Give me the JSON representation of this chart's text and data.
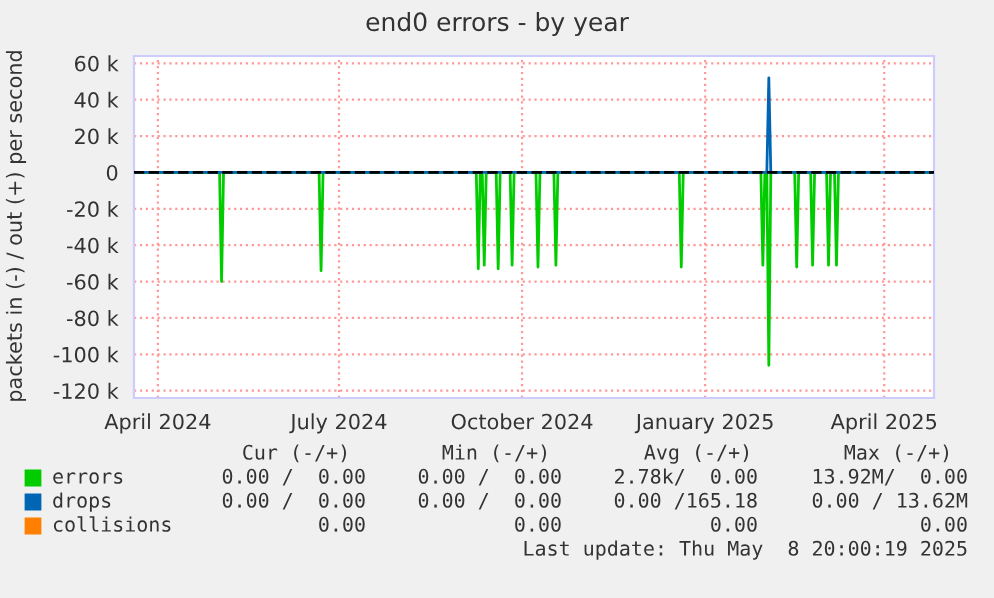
{
  "chart_data": {
    "type": "line",
    "title": "end0 errors - by year",
    "ylabel": "packets in (-) / out (+) per second",
    "xlim": [
      "2024-03-20",
      "2025-04-26"
    ],
    "ylim": [
      -124000,
      64000
    ],
    "xticks": [
      {
        "value": "2024-04-01",
        "label": "April 2024"
      },
      {
        "value": "2024-07-01",
        "label": "July 2024"
      },
      {
        "value": "2024-10-01",
        "label": "October 2024"
      },
      {
        "value": "2025-01-01",
        "label": "January 2025"
      },
      {
        "value": "2025-04-01",
        "label": "April 2025"
      }
    ],
    "yticks": [
      {
        "value": -120000,
        "label": "-120 k"
      },
      {
        "value": -100000,
        "label": "-100 k"
      },
      {
        "value": -80000,
        "label": "-80 k"
      },
      {
        "value": -60000,
        "label": "-60 k"
      },
      {
        "value": -40000,
        "label": "-40 k"
      },
      {
        "value": -20000,
        "label": "-20 k"
      },
      0,
      {
        "value": 20000,
        "label": "20 k"
      },
      {
        "value": 40000,
        "label": "40 k"
      },
      {
        "value": 60000,
        "label": "60 k"
      }
    ],
    "grid": true,
    "legend": "bottom",
    "ref_lines": [
      {
        "axis": "y",
        "value": 0,
        "color": "#000000",
        "line_style": "dashed"
      }
    ],
    "series": [
      {
        "name": "errors",
        "color": "#00cc00",
        "x": [
          "2024-03-20",
          "2024-05-02",
          "2024-05-03",
          "2024-05-04",
          "2024-06-21",
          "2024-06-22",
          "2024-06-23",
          "2024-09-08",
          "2024-09-09",
          "2024-09-10",
          "2024-09-11",
          "2024-09-12",
          "2024-09-13",
          "2024-09-18",
          "2024-09-19",
          "2024-09-20",
          "2024-09-25",
          "2024-09-26",
          "2024-09-27",
          "2024-10-08",
          "2024-10-09",
          "2024-10-10",
          "2024-10-17",
          "2024-10-18",
          "2024-10-19",
          "2024-12-19",
          "2024-12-20",
          "2024-12-21",
          "2025-01-29",
          "2025-01-30",
          "2025-01-31",
          "2025-02-01",
          "2025-02-02",
          "2025-02-03",
          "2025-02-15",
          "2025-02-16",
          "2025-02-17",
          "2025-02-23",
          "2025-02-24",
          "2025-02-25",
          "2025-03-03",
          "2025-03-04",
          "2025-03-05",
          "2025-03-07",
          "2025-03-08",
          "2025-03-09",
          "2025-04-26"
        ],
        "values": [
          0,
          0,
          -60000,
          0,
          0,
          -54000,
          0,
          0,
          -53000,
          0,
          0,
          -51000,
          0,
          0,
          -53000,
          0,
          0,
          -51000,
          0,
          0,
          -52000,
          0,
          0,
          -51000,
          0,
          0,
          -52000,
          0,
          0,
          -51000,
          0,
          0,
          -106000,
          0,
          0,
          -52000,
          0,
          0,
          -51000,
          0,
          0,
          -51000,
          0,
          0,
          -51000,
          0,
          0
        ]
      },
      {
        "name": "drops",
        "color": "#0066b3",
        "x": [
          "2024-03-20",
          "2025-02-01",
          "2025-02-02",
          "2025-02-03",
          "2025-04-26"
        ],
        "values": [
          0,
          0,
          52000,
          0,
          0
        ]
      },
      {
        "name": "collisions",
        "color": "#ff8000"
      }
    ],
    "annotations": [
      "Cur (-/+)",
      "Min (-/+)",
      "Avg (-/+)",
      "Max (-/+)",
      "0.00 /  0.00",
      "0.00 /  0.00",
      "2.78k/  0.00",
      "13.92M/  0.00",
      "0.00 /  0.00",
      "0.00 /  0.00",
      "0.00 /165.18",
      "0.00 / 13.62M",
      "0.00",
      "0.00",
      "0.00",
      "0.00",
      "Last update: Thu May  8 20:00:19 2025"
    ]
  }
}
